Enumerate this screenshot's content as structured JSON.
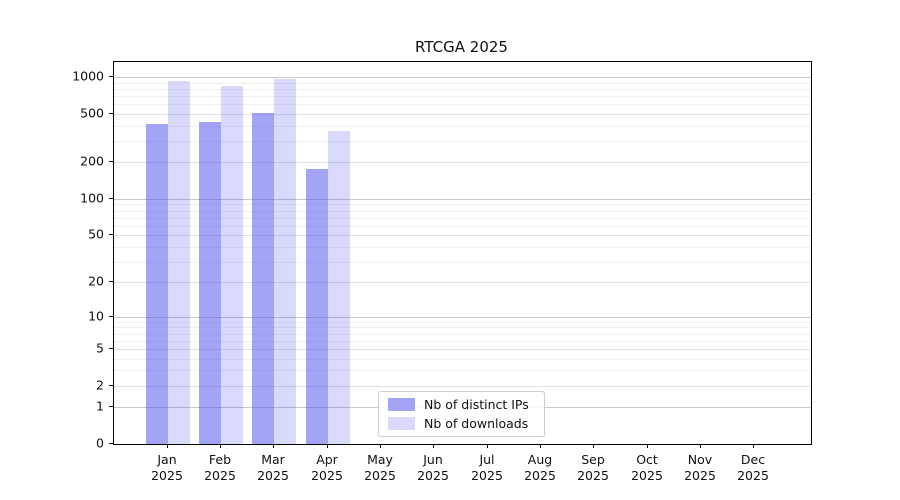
{
  "title": "RTCGA 2025",
  "colors": {
    "spine": "#000000",
    "grid_decade": "#c9c9c9",
    "grid_labeled": "#e2e2e2",
    "grid_minor": "#f1f1f1",
    "text": "#111111",
    "bar_dark": "rgba(80,80,235,0.52)",
    "bar_light": "rgba(80,80,235,0.22)"
  },
  "legend": {
    "items": [
      {
        "label": "Nb of distinct IPs",
        "color": "rgba(80,80,235,0.52)"
      },
      {
        "label": "Nb of downloads",
        "color": "rgba(80,80,235,0.22)"
      }
    ]
  },
  "chart_data": {
    "type": "bar",
    "title": "RTCGA 2025",
    "x_categories": [
      {
        "month": "Jan",
        "year": "2025"
      },
      {
        "month": "Feb",
        "year": "2025"
      },
      {
        "month": "Mar",
        "year": "2025"
      },
      {
        "month": "Apr",
        "year": "2025"
      },
      {
        "month": "May",
        "year": "2025"
      },
      {
        "month": "Jun",
        "year": "2025"
      },
      {
        "month": "Jul",
        "year": "2025"
      },
      {
        "month": "Aug",
        "year": "2025"
      },
      {
        "month": "Sep",
        "year": "2025"
      },
      {
        "month": "Oct",
        "year": "2025"
      },
      {
        "month": "Nov",
        "year": "2025"
      },
      {
        "month": "Dec",
        "year": "2025"
      }
    ],
    "series": [
      {
        "name": "Nb of distinct IPs",
        "color": "rgba(80,80,235,0.52)",
        "values": [
          415,
          430,
          505,
          175,
          null,
          null,
          null,
          null,
          null,
          null,
          null,
          null
        ]
      },
      {
        "name": "Nb of downloads",
        "color": "rgba(80,80,235,0.22)",
        "values": [
          920,
          850,
          965,
          360,
          null,
          null,
          null,
          null,
          null,
          null,
          null,
          null
        ]
      }
    ],
    "y_scale": "log1p",
    "y_ticks": [
      1000,
      500,
      200,
      100,
      50,
      20,
      10,
      5,
      2,
      1,
      0
    ],
    "y_decade_ticks": [
      1,
      10,
      100,
      1000
    ],
    "y_minor_gridlines": [
      3,
      4,
      6,
      7,
      8,
      9,
      30,
      40,
      60,
      70,
      80,
      90,
      300,
      400,
      600,
      700,
      800,
      900
    ],
    "ylim": [
      0,
      1340
    ],
    "xlabel": "",
    "ylabel": "",
    "grid": "horizontal",
    "legend_position": "inside-bottom-center"
  }
}
